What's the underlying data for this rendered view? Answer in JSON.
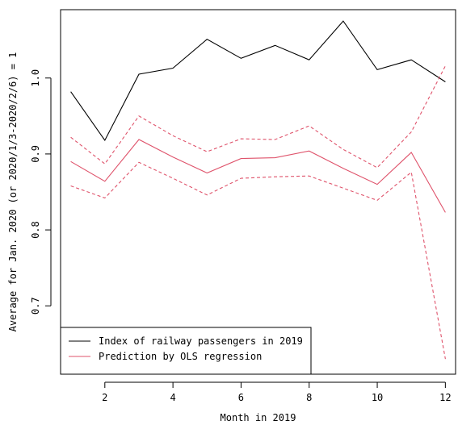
{
  "chart_data": {
    "type": "line",
    "title": "",
    "xlabel": "Month in 2019",
    "ylabel": "Average for Jan. 2020 (or 2020/1/3-2020/2/6) = 1",
    "xlim": [
      0.7,
      12.3
    ],
    "ylim": [
      0.61,
      1.09
    ],
    "x_ticks": [
      2,
      4,
      6,
      8,
      10,
      12
    ],
    "y_ticks": [
      0.7,
      0.8,
      0.9,
      1.0
    ],
    "y_tick_labels": [
      "0.7",
      "0.8",
      "0.9",
      "1.0"
    ],
    "grid": false,
    "legend_position": "bottom-left",
    "x": [
      1,
      2,
      3,
      4,
      5,
      6,
      7,
      8,
      9,
      10,
      11,
      12
    ],
    "series": [
      {
        "name": "Index of railway passengers in 2019",
        "color": "#000000",
        "style": "solid",
        "values": [
          0.982,
          0.918,
          1.005,
          1.013,
          1.051,
          1.026,
          1.043,
          1.024,
          1.075,
          1.011,
          1.024,
          0.995
        ]
      },
      {
        "name": "Prediction by OLS regression",
        "color": "#df536b",
        "style": "solid",
        "values": [
          0.89,
          0.864,
          0.919,
          0.896,
          0.875,
          0.894,
          0.895,
          0.904,
          0.881,
          0.86,
          0.902,
          0.823
        ]
      },
      {
        "name": "",
        "color": "#df536b",
        "style": "dashed",
        "values": [
          0.922,
          0.887,
          0.95,
          0.924,
          0.903,
          0.92,
          0.919,
          0.937,
          0.906,
          0.882,
          0.929,
          1.016
        ]
      },
      {
        "name": "",
        "color": "#df536b",
        "style": "dashed",
        "values": [
          0.858,
          0.842,
          0.889,
          0.868,
          0.846,
          0.868,
          0.87,
          0.871,
          0.855,
          0.839,
          0.876,
          0.63
        ]
      }
    ]
  }
}
